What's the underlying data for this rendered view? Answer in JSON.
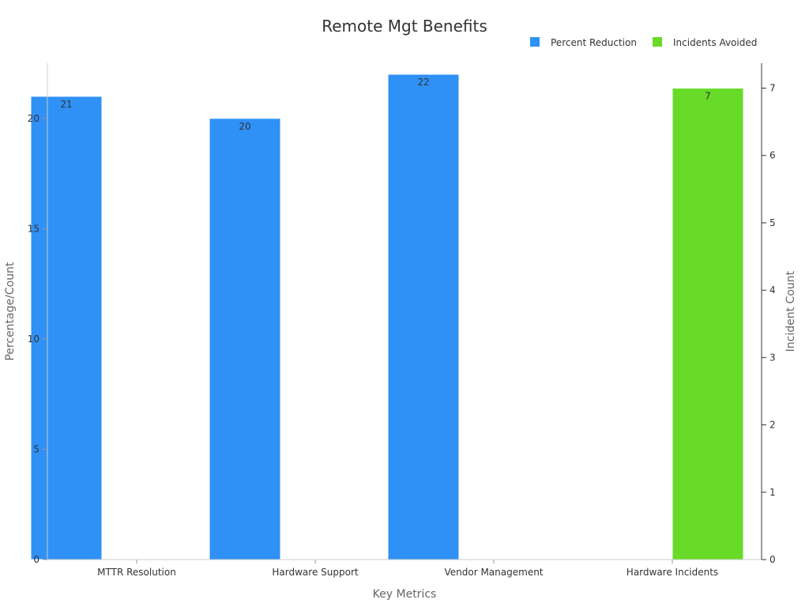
{
  "chart_data": {
    "type": "bar",
    "title": "Remote Mgt Benefits",
    "xlabel": "Key Metrics",
    "ylabel": "Percentage/Count",
    "y2label": "Incident Count",
    "categories": [
      "MTTR Resolution",
      "Hardware Support",
      "Vendor Management",
      "Hardware Incidents"
    ],
    "series": [
      {
        "name": "Percent Reduction",
        "axis": "left",
        "color": "#2f91f6",
        "values": [
          21,
          20,
          22,
          null
        ]
      },
      {
        "name": "Incidents Avoided",
        "axis": "right",
        "color": "#67db28",
        "values": [
          null,
          null,
          null,
          7
        ]
      }
    ],
    "ylim": [
      0,
      22.5
    ],
    "y2lim": [
      0,
      7.37
    ],
    "yticks": [
      0,
      5,
      10,
      15,
      20
    ],
    "y2ticks": [
      0,
      1,
      2,
      3,
      4,
      5,
      6,
      7
    ],
    "grid": false,
    "legend_position": "top-right"
  }
}
